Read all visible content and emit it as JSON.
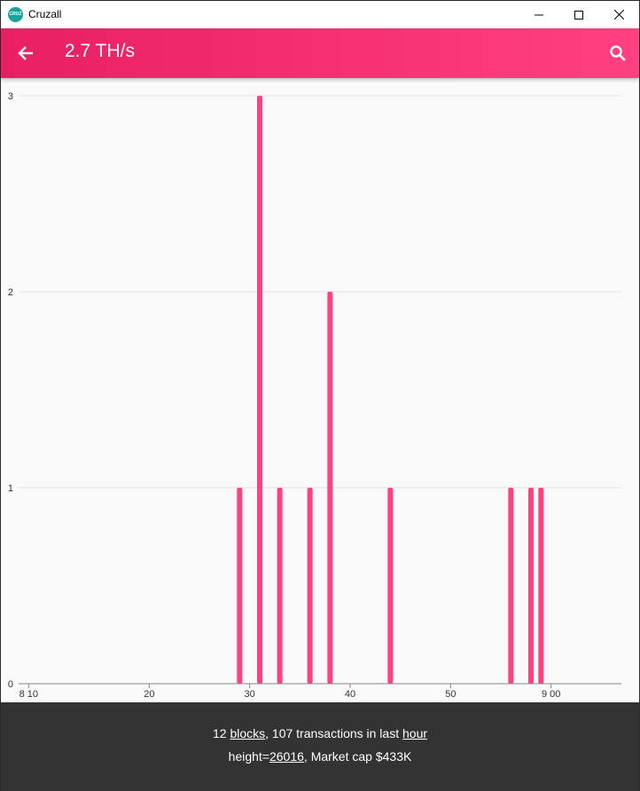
{
  "window": {
    "title": "Cruzall",
    "icon_text": "CRUZ"
  },
  "appbar": {
    "title": "2.7 TH/s",
    "back_icon": "arrow-left-icon",
    "search_icon": "search-icon"
  },
  "colors": {
    "accent_start": "#e91e63",
    "accent_end": "#ff4081",
    "bar": "#ff4081",
    "footer_bg": "#333333"
  },
  "chart_data": {
    "type": "bar",
    "x": [
      29,
      31,
      33,
      36,
      38,
      44,
      56,
      58,
      59
    ],
    "values": [
      1,
      3,
      1,
      1,
      2,
      1,
      1,
      1,
      1
    ],
    "xlim": [
      7,
      67
    ],
    "ylim": [
      0,
      3
    ],
    "x_ticks": [
      {
        "value": 8,
        "label": "8 10"
      },
      {
        "value": 20,
        "label": "20"
      },
      {
        "value": 30,
        "label": "30"
      },
      {
        "value": 40,
        "label": "40"
      },
      {
        "value": 50,
        "label": "50"
      },
      {
        "value": 60,
        "label": "9 00"
      }
    ],
    "y_ticks": [
      0,
      1,
      2,
      3
    ],
    "grid": true
  },
  "footer": {
    "line1_count": "12",
    "line1_blocks": "blocks",
    "line1_mid": ", 107 transactions in last",
    "line1_hour": "hour",
    "line2_prefix": "height=",
    "line2_height": "26016",
    "line2_suffix": ", Market cap $433K"
  }
}
